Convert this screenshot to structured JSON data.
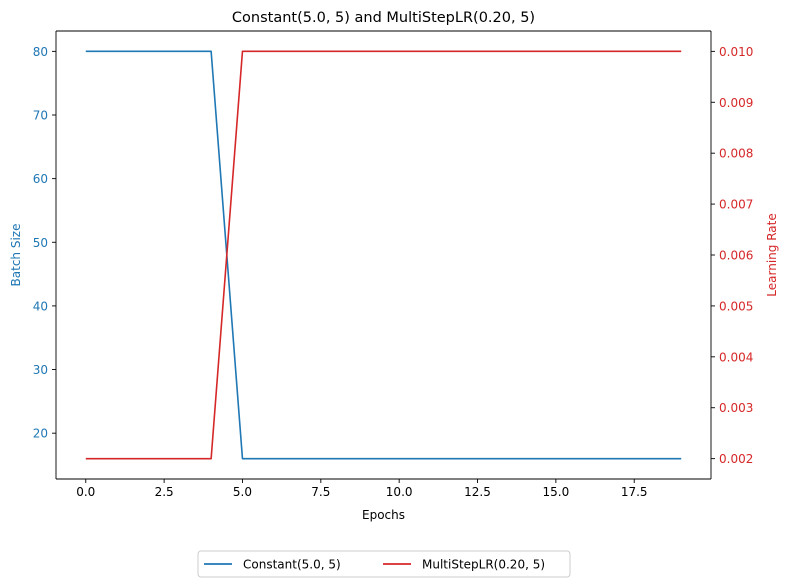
{
  "chart_data": {
    "type": "line",
    "title": "Constant(5.0, 5) and MultiStepLR(0.20, 5)",
    "xlabel": "Epochs",
    "ylabel_left": "Batch Size",
    "ylabel_right": "Learning Rate",
    "xlim": [
      -0.95,
      19.95
    ],
    "ylim_left": [
      12.8,
      83.2
    ],
    "ylim_right": [
      0.0016,
      0.0104
    ],
    "x_ticks": [
      0,
      2.5,
      5,
      7.5,
      10,
      12.5,
      15,
      17.5
    ],
    "x_tick_labels": [
      "0.0",
      "2.5",
      "5.0",
      "7.5",
      "10.0",
      "12.5",
      "15.0",
      "17.5"
    ],
    "y_left_ticks": [
      20,
      30,
      40,
      50,
      60,
      70,
      80
    ],
    "y_left_tick_labels": [
      "20",
      "30",
      "40",
      "50",
      "60",
      "70",
      "80"
    ],
    "y_right_ticks": [
      0.002,
      0.003,
      0.004,
      0.005,
      0.006,
      0.007,
      0.008,
      0.009,
      0.01
    ],
    "y_right_tick_labels": [
      "0.002",
      "0.003",
      "0.004",
      "0.005",
      "0.006",
      "0.007",
      "0.008",
      "0.009",
      "0.010"
    ],
    "x": [
      0,
      1,
      2,
      3,
      4,
      5,
      6,
      7,
      8,
      9,
      10,
      11,
      12,
      13,
      14,
      15,
      16,
      17,
      18,
      19
    ],
    "series": [
      {
        "name": "Constant(5.0, 5)",
        "axis": "left",
        "color": "#1f77b4",
        "values": [
          80,
          80,
          80,
          80,
          80,
          16,
          16,
          16,
          16,
          16,
          16,
          16,
          16,
          16,
          16,
          16,
          16,
          16,
          16,
          16
        ]
      },
      {
        "name": "MultiStepLR(0.20, 5)",
        "axis": "right",
        "color": "#d62728",
        "values": [
          0.002,
          0.002,
          0.002,
          0.002,
          0.002,
          0.01,
          0.01,
          0.01,
          0.01,
          0.01,
          0.01,
          0.01,
          0.01,
          0.01,
          0.01,
          0.01,
          0.01,
          0.01,
          0.01,
          0.01
        ]
      }
    ],
    "legend_position": "bottom-center",
    "grid": false
  },
  "colors": {
    "left_axis": "#1f77b4",
    "right_axis": "#d62728",
    "axis_line": "#000000"
  }
}
